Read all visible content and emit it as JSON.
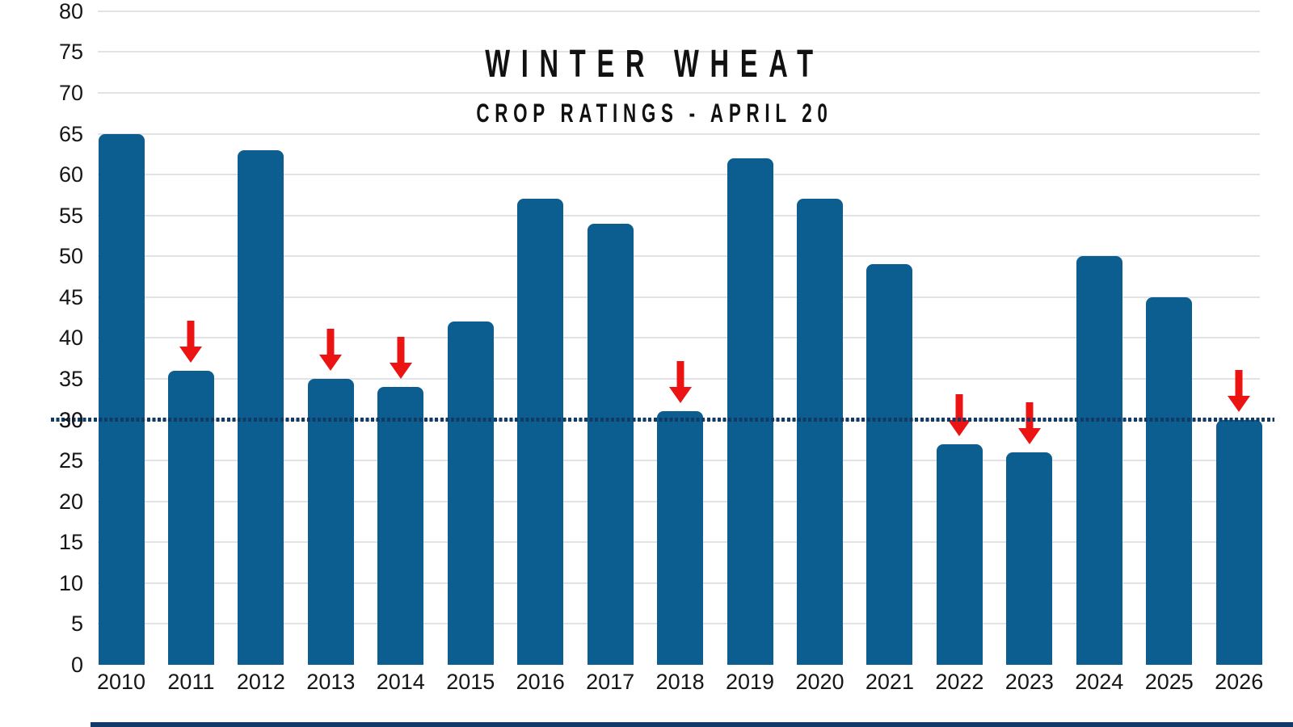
{
  "chart_data": {
    "type": "bar",
    "title": "WINTER WHEAT",
    "subtitle": "CROP RATINGS - APRIL 20",
    "categories": [
      "2010",
      "2011",
      "2012",
      "2013",
      "2014",
      "2015",
      "2016",
      "2017",
      "2018",
      "2019",
      "2020",
      "2021",
      "2022",
      "2023",
      "2024",
      "2025",
      "2026"
    ],
    "values": [
      65,
      36,
      63,
      35,
      34,
      42,
      57,
      54,
      31,
      62,
      57,
      49,
      27,
      26,
      50,
      45,
      30
    ],
    "decline_arrow_years": [
      "2011",
      "2013",
      "2014",
      "2018",
      "2022",
      "2023",
      "2026"
    ],
    "reference_line": {
      "value": 30,
      "style": "dotted"
    },
    "ylim": [
      0,
      80
    ],
    "ytick_step": 5,
    "grid": "horizontal",
    "legend": "none",
    "colors": {
      "bar": "#0c5e91",
      "arrow": "#ec1313",
      "reference_line": "#113a65",
      "gridline": "#e3e3e6",
      "text": "#161616",
      "title": "#111111",
      "bottom_rule": "#123a68"
    }
  }
}
